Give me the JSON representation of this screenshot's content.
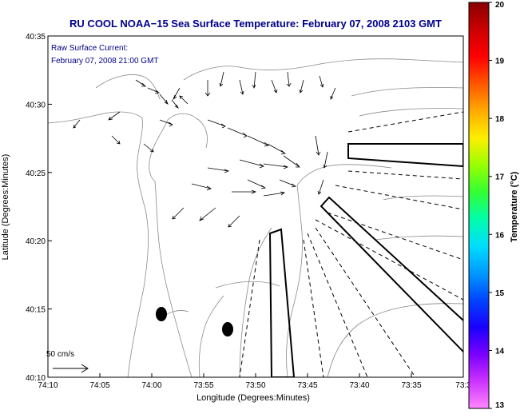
{
  "chart_data": {
    "type": "map",
    "title": "RU COOL  NOAA−15  Sea Surface Temperature:  February 07, 2008 2103 GMT",
    "subtitle_lines": [
      "Raw Surface Current:",
      "February 07, 2008 21:00 GMT"
    ],
    "xlabel": "Longitude (Degrees:Minutes)",
    "ylabel": "Latitude (Degrees:Minutes)",
    "x_ticks": [
      "74:10",
      "74:05",
      "74:00",
      "73:55",
      "73:50",
      "73:45",
      "73:40",
      "73:35",
      "73:3"
    ],
    "y_ticks": [
      "40:35",
      "40:30",
      "40:25",
      "40:20",
      "40:15",
      "40:10"
    ],
    "colorbar": {
      "label": "Temperature (°C)",
      "min": 13,
      "max": 20,
      "ticks": [
        "20",
        "19",
        "18",
        "17",
        "16",
        "15",
        "14",
        "13"
      ],
      "colors": [
        "#ff88ff",
        "#cc33ff",
        "#7a00ff",
        "#1a00ff",
        "#0044ff",
        "#0099ff",
        "#00ddff",
        "#00ffaa",
        "#33ff33",
        "#99ff00",
        "#ffee00",
        "#ffaa00",
        "#ff5500",
        "#ff0000",
        "#cc0000",
        "#880000"
      ]
    },
    "scale_label": "50 cm/s",
    "colors": {
      "title": "#00008b",
      "data_text": "#00008b",
      "land_contour": "#8a8a8a",
      "lines": "#000000"
    }
  }
}
